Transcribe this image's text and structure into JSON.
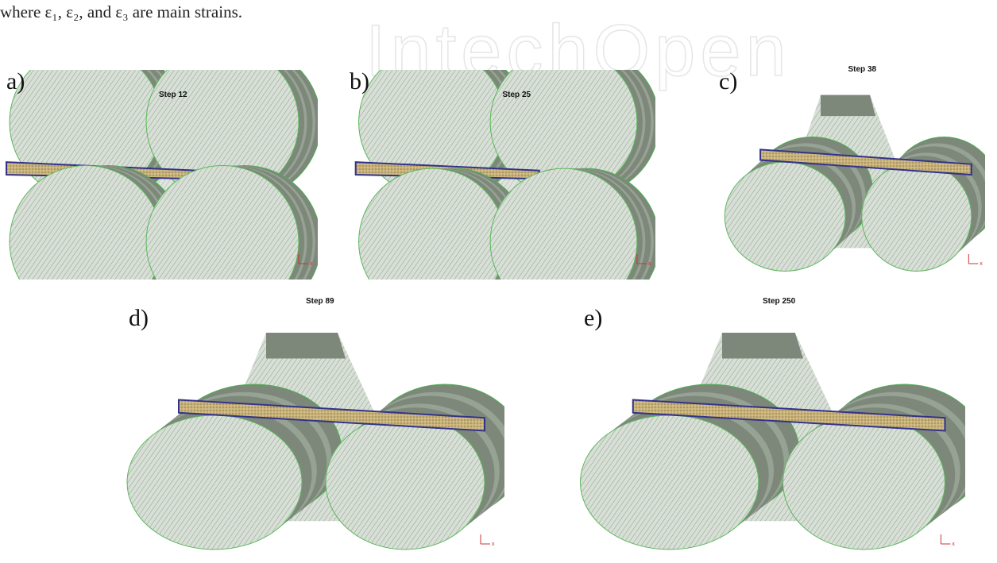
{
  "caption": "where ε₁, ε₂, and ε₃ are main strains.",
  "watermark": "IntechOpen",
  "panels": [
    {
      "label": "a)",
      "step": "Step 12",
      "axis": "x"
    },
    {
      "label": "b)",
      "step": "Step 25",
      "axis": "x"
    },
    {
      "label": "c)",
      "step": "Step 38",
      "axis": "x"
    },
    {
      "label": "d)",
      "step": "Step 89",
      "axis": "x"
    },
    {
      "label": "e)",
      "step": "Step 250",
      "axis": "x"
    }
  ]
}
